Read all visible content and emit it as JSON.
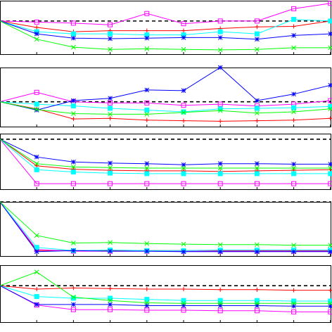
{
  "colors": {
    "red": "#ff0000",
    "magenta": "#ff00ff",
    "cyan": "#00ffff",
    "blue": "#0000ff",
    "green": "#00ff00",
    "reference": "#000000"
  },
  "chart_data": [
    {
      "type": "line",
      "x": [
        0,
        1,
        2,
        3,
        4,
        5,
        6,
        7,
        8,
        9
      ],
      "ylim": [
        0,
        100
      ],
      "reference_line": 62,
      "grid": false,
      "series": [
        {
          "color": "red",
          "marker": "plus",
          "values": [
            62,
            50,
            42,
            44,
            44,
            44,
            48,
            51,
            52,
            62
          ]
        },
        {
          "color": "magenta",
          "marker": "square",
          "values": [
            62,
            60,
            58,
            55,
            76,
            57,
            62,
            62,
            85,
            95
          ]
        },
        {
          "color": "cyan",
          "marker": "filled-square",
          "values": [
            62,
            42,
            38,
            38,
            36,
            36,
            42,
            38,
            65,
            62
          ]
        },
        {
          "color": "blue",
          "marker": "asterisk",
          "values": [
            62,
            38,
            30,
            29,
            30,
            31,
            31,
            28,
            35,
            38
          ]
        },
        {
          "color": "green",
          "marker": "x",
          "values": [
            62,
            28,
            13,
            9,
            10,
            9,
            8,
            9,
            12,
            12
          ]
        }
      ]
    },
    {
      "type": "line",
      "x": [
        0,
        1,
        2,
        3,
        4,
        5,
        6,
        7,
        8,
        9
      ],
      "ylim": [
        0,
        100
      ],
      "reference_line": 42,
      "grid": false,
      "series": [
        {
          "color": "red",
          "marker": "plus",
          "values": [
            42,
            30,
            13,
            14,
            11,
            10,
            9,
            10,
            11,
            14
          ]
        },
        {
          "color": "magenta",
          "marker": "square",
          "values": [
            42,
            58,
            42,
            40,
            40,
            36,
            38,
            35,
            38,
            44
          ]
        },
        {
          "color": "cyan",
          "marker": "filled-square",
          "values": [
            42,
            38,
            35,
            31,
            28,
            25,
            30,
            31,
            32,
            34
          ]
        },
        {
          "color": "blue",
          "marker": "asterisk",
          "values": [
            42,
            28,
            44,
            48,
            62,
            61,
            100,
            44,
            55,
            70
          ]
        },
        {
          "color": "green",
          "marker": "x",
          "values": [
            42,
            29,
            22,
            21,
            21,
            24,
            27,
            23,
            25,
            30
          ]
        }
      ]
    },
    {
      "type": "line",
      "x": [
        0,
        1,
        2,
        3,
        4,
        5,
        6,
        7,
        8,
        9
      ],
      "ylim": [
        0,
        100
      ],
      "reference_line": 90,
      "grid": false,
      "series": [
        {
          "color": "red",
          "marker": "plus",
          "values": [
            90,
            42,
            36,
            34,
            33,
            33,
            32,
            33,
            34,
            35
          ]
        },
        {
          "color": "magenta",
          "marker": "square",
          "values": [
            90,
            10,
            10,
            10,
            10,
            10,
            10,
            10,
            10,
            10
          ]
        },
        {
          "color": "cyan",
          "marker": "filled-square",
          "values": [
            90,
            35,
            31,
            29,
            28,
            28,
            28,
            28,
            28,
            28
          ]
        },
        {
          "color": "blue",
          "marker": "asterisk",
          "values": [
            90,
            58,
            49,
            47,
            46,
            44,
            46,
            46,
            45,
            45
          ]
        },
        {
          "color": "green",
          "marker": "x",
          "values": [
            90,
            46,
            40,
            39,
            38,
            38,
            38,
            38,
            38,
            38
          ]
        }
      ]
    },
    {
      "type": "line",
      "x": [
        0,
        1,
        2,
        3,
        4,
        5,
        6,
        7,
        8,
        9
      ],
      "ylim": [
        0,
        100
      ],
      "reference_line": 100,
      "grid": false,
      "series": [
        {
          "color": "red",
          "marker": "plus",
          "values": [
            100,
            10,
            10,
            10,
            10,
            10,
            10,
            10,
            10,
            10
          ]
        },
        {
          "color": "magenta",
          "marker": "square",
          "values": [
            100,
            12,
            9,
            9,
            9,
            9,
            9,
            9,
            9,
            9
          ]
        },
        {
          "color": "cyan",
          "marker": "filled-square",
          "values": [
            100,
            16,
            10,
            11,
            10,
            10,
            11,
            11,
            11,
            11
          ]
        },
        {
          "color": "blue",
          "marker": "asterisk",
          "values": [
            100,
            8,
            10,
            9,
            9,
            8,
            8,
            8,
            8,
            8
          ]
        },
        {
          "color": "green",
          "marker": "x",
          "values": [
            100,
            38,
            24,
            25,
            23,
            22,
            21,
            21,
            20,
            20
          ]
        }
      ]
    },
    {
      "type": "line",
      "x": [
        0,
        1,
        2,
        3,
        4,
        5,
        6,
        7,
        8,
        9
      ],
      "ylim": [
        0,
        100
      ],
      "reference_line": 64,
      "grid": false,
      "series": [
        {
          "color": "red",
          "marker": "plus",
          "values": [
            64,
            58,
            60,
            59,
            58,
            58,
            57,
            57,
            56,
            56
          ]
        },
        {
          "color": "magenta",
          "marker": "square",
          "values": [
            64,
            30,
            22,
            22,
            21,
            21,
            20,
            20,
            18,
            18
          ]
        },
        {
          "color": "cyan",
          "marker": "filled-square",
          "values": [
            64,
            45,
            42,
            42,
            40,
            38,
            38,
            38,
            37,
            37
          ]
        },
        {
          "color": "blue",
          "marker": "asterisk",
          "values": [
            64,
            31,
            31,
            31,
            29,
            29,
            29,
            29,
            28,
            28
          ]
        },
        {
          "color": "green",
          "marker": "x",
          "values": [
            64,
            88,
            44,
            38,
            34,
            33,
            33,
            33,
            33,
            33
          ]
        }
      ]
    }
  ]
}
